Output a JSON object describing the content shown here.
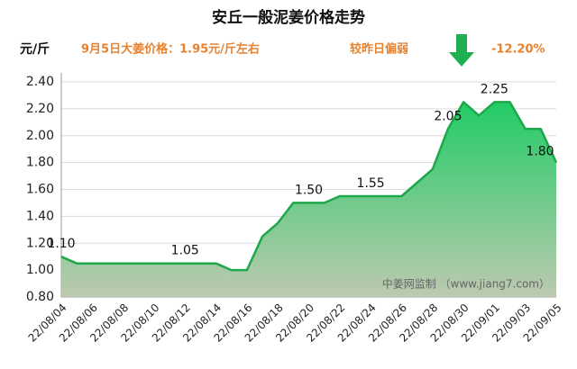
{
  "chart_data": {
    "type": "line",
    "title": "安丘一般泥姜价格走势",
    "y_label": "元/斤",
    "subtitle": "9月5日大姜价格：1.95元/斤左右",
    "change_label": "较昨日偏弱",
    "change": "-12.20%",
    "watermark": "中姜网监制 （www.jiang7.com）",
    "categories": [
      "22/08/04",
      null,
      "22/08/06",
      null,
      "22/08/08",
      null,
      "22/08/10",
      null,
      "22/08/12",
      null,
      "22/08/14",
      null,
      "22/08/16",
      null,
      "22/08/18",
      null,
      "22/08/20",
      null,
      "22/08/22",
      null,
      "22/08/24",
      null,
      "22/08/26",
      null,
      "22/08/28",
      null,
      "22/08/30",
      null,
      "22/09/01",
      null,
      "22/09/03",
      null,
      "22/09/05"
    ],
    "values": [
      1.1,
      1.05,
      1.05,
      1.05,
      1.05,
      1.05,
      1.05,
      1.05,
      1.05,
      1.05,
      1.05,
      1.0,
      1.0,
      1.25,
      1.35,
      1.5,
      1.5,
      1.5,
      1.55,
      1.55,
      1.55,
      1.55,
      1.55,
      1.65,
      1.75,
      2.05,
      2.25,
      2.15,
      2.25,
      2.25,
      2.05,
      2.05,
      1.8
    ],
    "value_labels": [
      "1.10",
      null,
      null,
      null,
      null,
      null,
      null,
      null,
      "1.05",
      null,
      null,
      null,
      null,
      null,
      null,
      null,
      "1.50",
      null,
      null,
      null,
      "1.55",
      null,
      null,
      null,
      null,
      "2.05",
      null,
      null,
      "2.25",
      null,
      null,
      null,
      "1.80"
    ],
    "color": "#1ea84a",
    "ylim": [
      0.8,
      2.4
    ],
    "yticks": [
      {
        "value": 0.8,
        "label": "0.80"
      },
      {
        "value": 1.0,
        "label": "1.00"
      },
      {
        "value": 1.2,
        "label": "1.20"
      },
      {
        "value": 1.4,
        "label": "1.40"
      },
      {
        "value": 1.6,
        "label": "1.60"
      },
      {
        "value": 1.8,
        "label": "1.80"
      },
      {
        "value": 2.0,
        "label": "2.00"
      },
      {
        "value": 2.2,
        "label": "2.20"
      },
      {
        "value": 2.4,
        "label": "2.40"
      }
    ],
    "grid": true
  }
}
